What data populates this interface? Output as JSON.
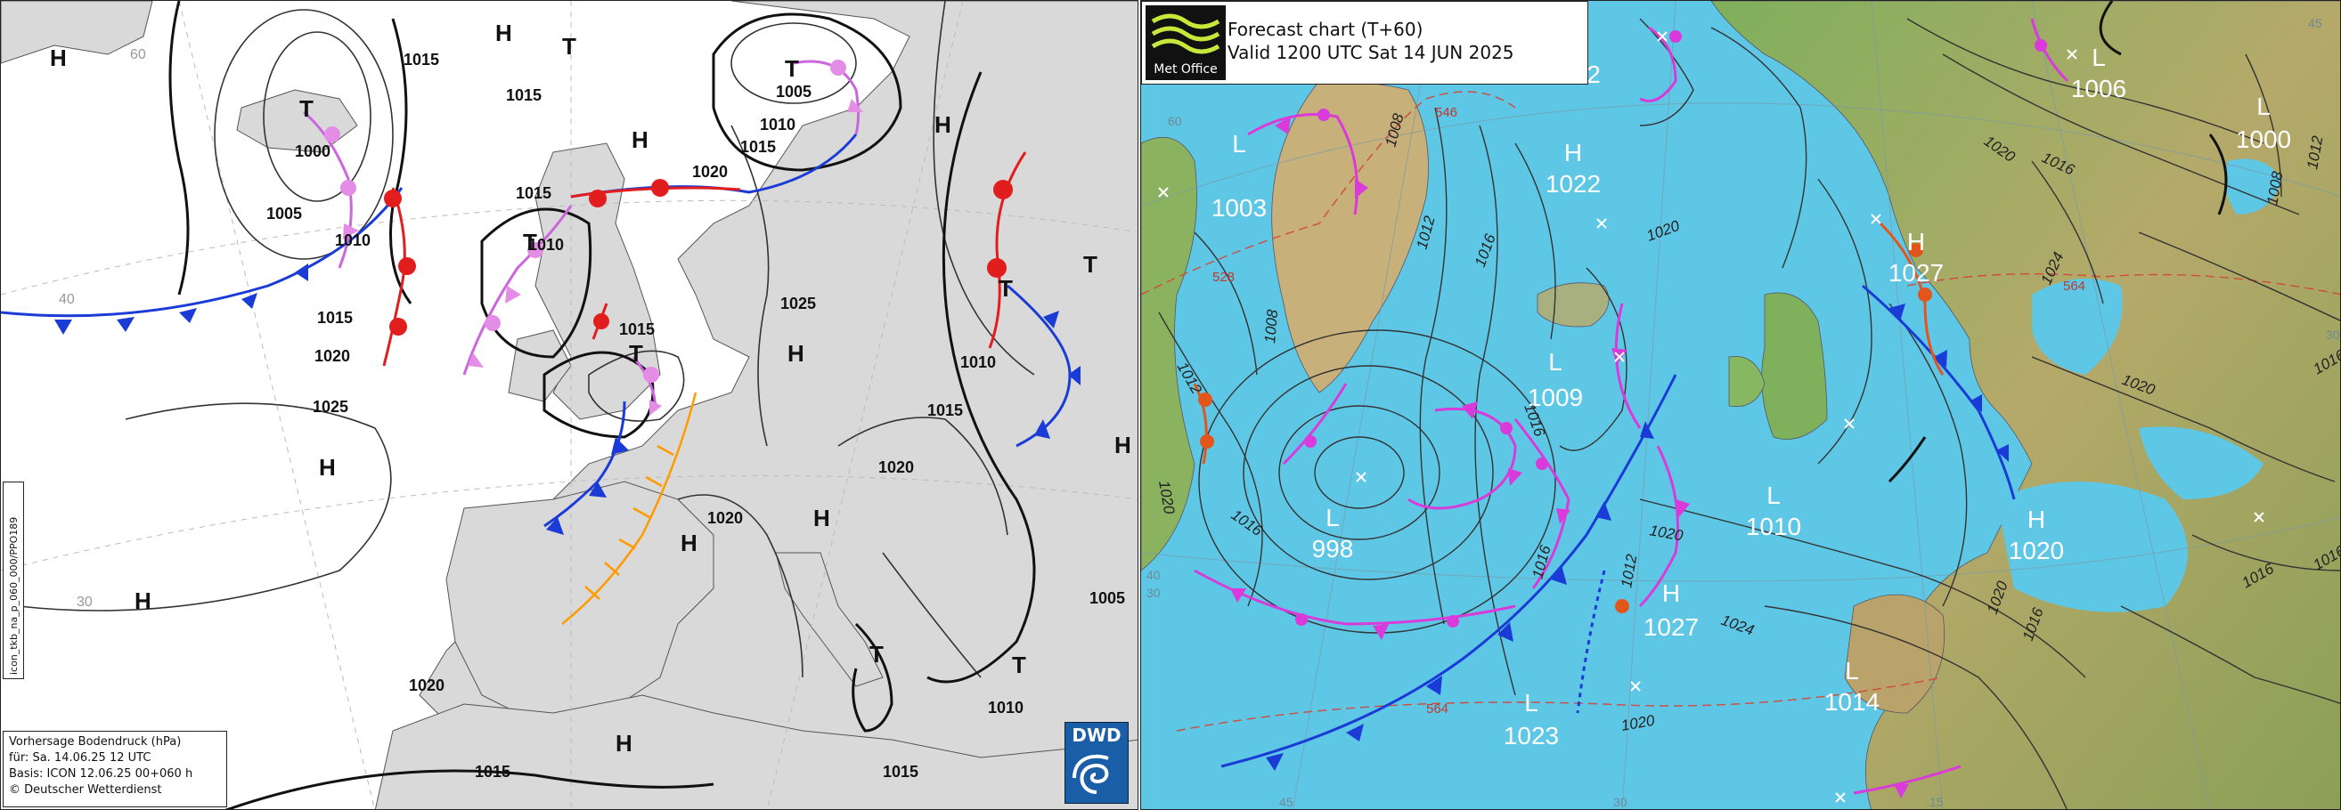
{
  "dwd": {
    "info_lines": [
      "Vorhersage Bodendruck (hPa)",
      "für:  Sa. 14.06.25  12 UTC",
      "Basis: ICON  12.06.25 00+060 h",
      "© Deutscher Wetterdienst"
    ],
    "side_text": "icon_tkb_na_p_060_000/PPO189",
    "logo_text": "DWD",
    "centers": [
      {
        "id": "h-nw",
        "letter": "H"
      },
      {
        "id": "h-north1",
        "letter": "H"
      },
      {
        "id": "t-north",
        "letter": "T"
      },
      {
        "id": "t-iceland-w",
        "letter": "T"
      },
      {
        "id": "t-norway",
        "letter": "T"
      },
      {
        "id": "h-uk-north",
        "letter": "H"
      },
      {
        "id": "t-scotland",
        "letter": "T"
      },
      {
        "id": "t-irish",
        "letter": "T"
      },
      {
        "id": "h-scand",
        "letter": "H"
      },
      {
        "id": "h-ne",
        "letter": "H"
      },
      {
        "id": "t-russia",
        "letter": "T"
      },
      {
        "id": "t-east",
        "letter": "T"
      },
      {
        "id": "h-far-east",
        "letter": "H"
      },
      {
        "id": "h-atlantic",
        "letter": "H"
      },
      {
        "id": "h-sw",
        "letter": "H"
      },
      {
        "id": "h-france",
        "letter": "H"
      },
      {
        "id": "h-central",
        "letter": "H"
      },
      {
        "id": "h-med",
        "letter": "H"
      },
      {
        "id": "t-greece",
        "letter": "T"
      },
      {
        "id": "t-turkey",
        "letter": "T"
      }
    ],
    "isobar_labels": [
      "1015",
      "1015",
      "1000",
      "1005",
      "1010",
      "1015",
      "1020",
      "1025",
      "1010",
      "1015",
      "1015",
      "1005",
      "1010",
      "1015",
      "1020",
      "1025",
      "1010",
      "1015",
      "1020",
      "1020",
      "1020",
      "1015",
      "1005",
      "1010",
      "1015"
    ],
    "graticule_labels": [
      "60",
      "40",
      "30"
    ]
  },
  "metoffice": {
    "logo_text": "Met Office",
    "title_line1": "Forecast chart (T+60)",
    "title_line2": "Valid 1200 UTC Sat 14 JUN 2025",
    "centers": [
      {
        "letter": "L",
        "value": "1003"
      },
      {
        "letter": "H",
        "value": "1022"
      },
      {
        "letter": "L",
        "value": "1009"
      },
      {
        "letter": "L",
        "value": "998"
      },
      {
        "letter": "H",
        "value": "1027"
      },
      {
        "letter": "L",
        "value": "1023"
      },
      {
        "letter": "L",
        "value": "1010"
      },
      {
        "letter": "H",
        "value": "1027"
      },
      {
        "letter": "L",
        "value": "1006"
      },
      {
        "letter": "L",
        "value": "1000"
      },
      {
        "letter": "H",
        "value": "1020"
      },
      {
        "letter": "L",
        "value": "1014"
      }
    ],
    "isobar_labels": [
      "1008",
      "1012",
      "1016",
      "1020",
      "1008",
      "1012",
      "1016",
      "1020",
      "1016",
      "1020",
      "1024",
      "1020",
      "1016",
      "1012",
      "1016",
      "1020",
      "1024",
      "1020",
      "1016",
      "1016",
      "1012",
      "1008",
      "1020",
      "1016",
      "1020",
      "1008",
      "1012",
      "1016"
    ],
    "thickness_labels": [
      "546",
      "528",
      "564",
      "564"
    ],
    "graticule_labels": [
      "45",
      "30",
      "15",
      "45",
      "30",
      "40",
      "30",
      "60"
    ],
    "partial_label": "2"
  }
}
